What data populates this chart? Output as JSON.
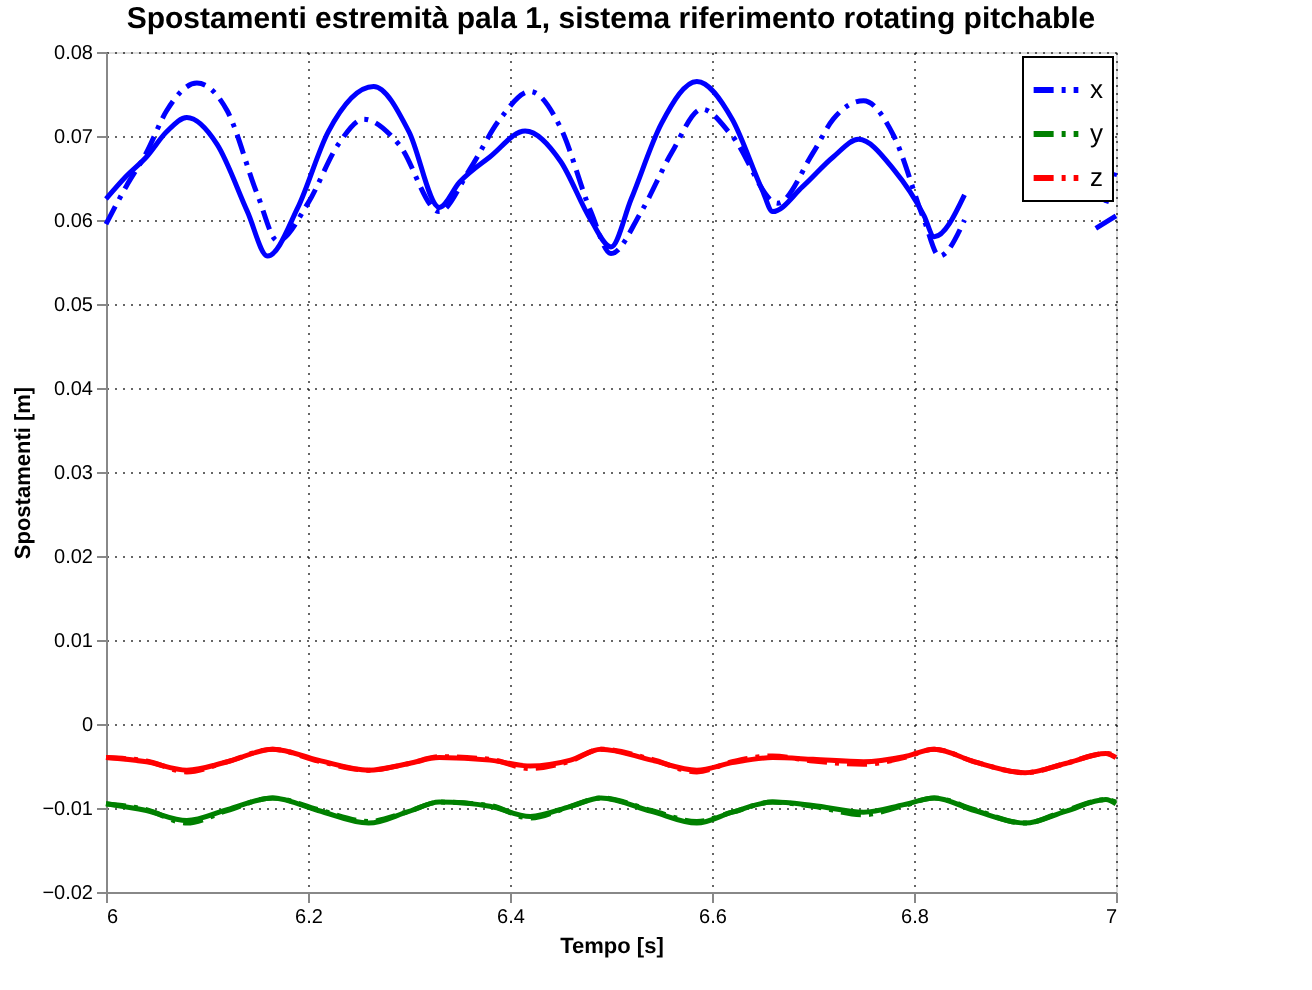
{
  "chart_data": {
    "type": "line",
    "title": "Spostamenti estremità pala 1, sistema riferimento rotating pitchable",
    "xlabel": "Tempo [s]",
    "ylabel": "Spostamenti [m]",
    "xlim": [
      6,
      7
    ],
    "xticks": [
      6,
      6.2,
      6.4,
      6.6,
      6.8,
      7
    ],
    "ylim": [
      -0.02,
      0.08
    ],
    "yticks": [
      -0.02,
      -0.01,
      0,
      0.01,
      0.02,
      0.03,
      0.04,
      0.05,
      0.06,
      0.07,
      0.08
    ],
    "grid": true,
    "legend": "top right",
    "series": [
      {
        "name": "x",
        "color": "#0000ff",
        "line_style": "dashdot",
        "x": [
          6,
          6.02,
          6.04,
          6.06,
          6.09,
          6.12,
          6.15,
          6.17,
          6.2,
          6.23,
          6.255,
          6.29,
          6.33,
          6.36,
          6.39,
          6.42,
          6.45,
          6.48,
          6.5,
          6.53,
          6.56,
          6.59,
          6.62,
          6.665,
          6.7,
          6.72,
          6.75,
          6.78,
          6.81,
          6.825,
          6.85,
          6.87,
          6.96,
          6.98,
          6.99,
          7
        ],
        "values": [
          0.0595,
          0.064,
          0.068,
          0.073,
          0.0763,
          0.073,
          0.063,
          0.0575,
          0.062,
          0.069,
          0.072,
          0.069,
          0.061,
          0.066,
          0.072,
          0.0753,
          0.071,
          0.061,
          0.056,
          0.061,
          0.068,
          0.0732,
          0.07,
          0.062,
          0.068,
          0.072,
          0.0742,
          0.07,
          0.06,
          0.0557,
          0.06,
          null,
          null,
          null,
          0.062,
          0.066
        ]
      },
      {
        "name": "y",
        "color": "#008000",
        "line_style": "dashdot",
        "x": [
          6,
          6.04,
          6.08,
          6.12,
          6.165,
          6.21,
          6.26,
          6.3,
          6.33,
          6.38,
          6.42,
          6.46,
          6.49,
          6.54,
          6.585,
          6.62,
          6.66,
          6.7,
          6.75,
          6.79,
          6.82,
          6.86,
          6.91,
          6.95,
          6.99,
          7
        ],
        "values": [
          -0.0095,
          -0.0102,
          -0.0118,
          -0.0103,
          -0.0088,
          -0.0102,
          -0.0116,
          -0.0104,
          -0.0093,
          -0.0097,
          -0.0112,
          -0.0098,
          -0.0088,
          -0.0103,
          -0.0116,
          -0.0105,
          -0.0093,
          -0.0098,
          -0.0108,
          -0.0097,
          -0.0088,
          -0.0102,
          -0.0118,
          -0.0103,
          -0.009,
          -0.0093
        ]
      },
      {
        "name": "z",
        "color": "#ff0000",
        "line_style": "dashdot",
        "x": [
          6,
          6.04,
          6.08,
          6.12,
          6.165,
          6.21,
          6.26,
          6.3,
          6.33,
          6.38,
          6.42,
          6.46,
          6.49,
          6.54,
          6.585,
          6.62,
          6.66,
          6.7,
          6.75,
          6.79,
          6.82,
          6.86,
          6.91,
          6.95,
          6.99,
          7
        ],
        "values": [
          -0.004,
          -0.0044,
          -0.0057,
          -0.0045,
          -0.003,
          -0.0044,
          -0.0055,
          -0.0047,
          -0.0039,
          -0.0042,
          -0.0053,
          -0.0044,
          -0.003,
          -0.0042,
          -0.0057,
          -0.0045,
          -0.0038,
          -0.0044,
          -0.0048,
          -0.004,
          -0.003,
          -0.0045,
          -0.0058,
          -0.0047,
          -0.0035,
          -0.0038
        ]
      },
      {
        "color": "#0000ff",
        "line_style": "solid",
        "x": [
          6,
          6.02,
          6.04,
          6.06,
          6.08,
          6.11,
          6.14,
          6.16,
          6.19,
          6.22,
          6.265,
          6.3,
          6.33,
          6.35,
          6.38,
          6.415,
          6.45,
          6.48,
          6.5,
          6.52,
          6.55,
          6.585,
          6.62,
          6.65,
          6.66,
          6.69,
          6.72,
          6.745,
          6.78,
          6.81,
          6.82,
          6.85,
          6.87,
          6.96,
          6.97,
          6.98,
          7
        ],
        "values": [
          0.0625,
          0.0652,
          0.0675,
          0.0705,
          0.0722,
          0.069,
          0.061,
          0.0557,
          0.0615,
          0.0705,
          0.0759,
          0.0705,
          0.0615,
          0.0645,
          0.0675,
          0.0706,
          0.067,
          0.06,
          0.0568,
          0.0625,
          0.0715,
          0.0765,
          0.072,
          0.0635,
          0.061,
          0.064,
          0.0675,
          0.0696,
          0.066,
          0.0605,
          0.058,
          0.063,
          null,
          null,
          null,
          0.059,
          0.0605
        ]
      },
      {
        "color": "#008000",
        "line_style": "solid",
        "x": [
          6,
          6.04,
          6.08,
          6.12,
          6.165,
          6.21,
          6.26,
          6.3,
          6.33,
          6.38,
          6.42,
          6.46,
          6.49,
          6.54,
          6.585,
          6.62,
          6.66,
          6.7,
          6.75,
          6.79,
          6.82,
          6.86,
          6.91,
          6.95,
          6.99,
          7
        ],
        "values": [
          -0.0095,
          -0.0103,
          -0.0115,
          -0.0102,
          -0.0088,
          -0.0103,
          -0.0118,
          -0.0104,
          -0.0093,
          -0.0098,
          -0.011,
          -0.0098,
          -0.0088,
          -0.0104,
          -0.0118,
          -0.0105,
          -0.0093,
          -0.0097,
          -0.0105,
          -0.0096,
          -0.0088,
          -0.0103,
          -0.0118,
          -0.0104,
          -0.009,
          -0.0095
        ]
      },
      {
        "color": "#ff0000",
        "line_style": "solid",
        "x": [
          6,
          6.04,
          6.08,
          6.12,
          6.165,
          6.21,
          6.26,
          6.3,
          6.33,
          6.38,
          6.42,
          6.46,
          6.49,
          6.54,
          6.585,
          6.62,
          6.66,
          6.7,
          6.75,
          6.79,
          6.82,
          6.86,
          6.91,
          6.95,
          6.99,
          7
        ],
        "values": [
          -0.004,
          -0.0045,
          -0.0055,
          -0.0045,
          -0.003,
          -0.0043,
          -0.0055,
          -0.0047,
          -0.004,
          -0.0043,
          -0.005,
          -0.0043,
          -0.003,
          -0.0043,
          -0.0055,
          -0.0046,
          -0.004,
          -0.0042,
          -0.0045,
          -0.0039,
          -0.003,
          -0.0045,
          -0.0058,
          -0.0047,
          -0.0035,
          -0.004
        ]
      }
    ]
  }
}
